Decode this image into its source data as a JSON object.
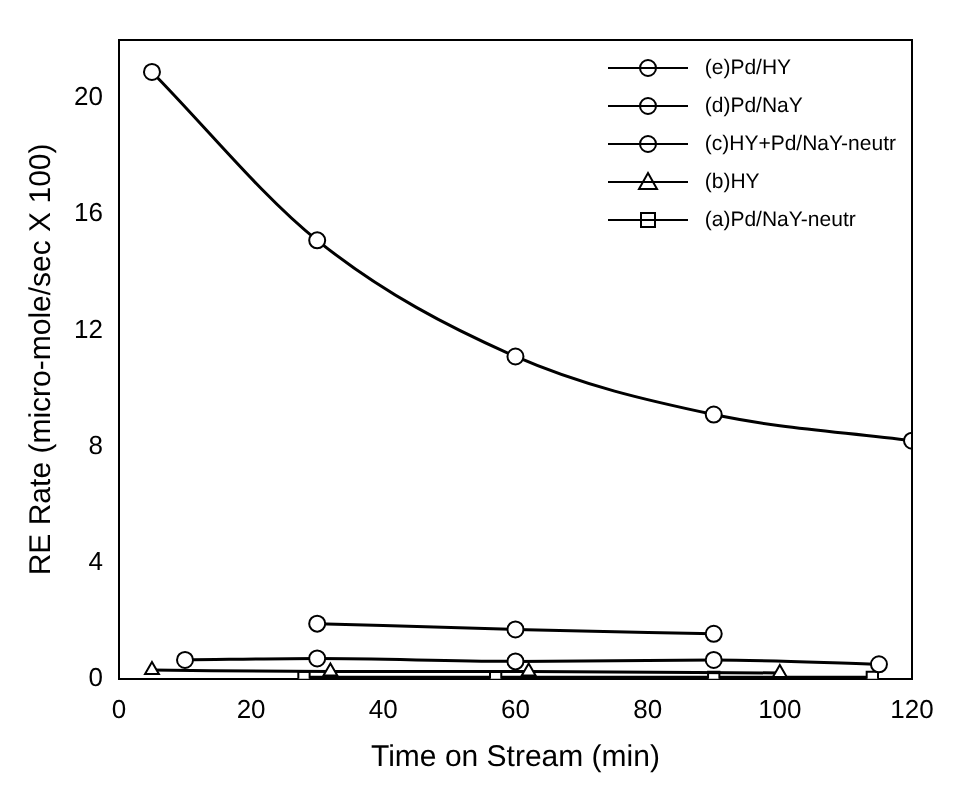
{
  "chart_data": {
    "type": "line",
    "xlabel": "Time on Stream (min)",
    "ylabel": "RE Rate (micro-mole/sec X 100)",
    "xlim": [
      0,
      120
    ],
    "xticks": [
      0,
      20,
      40,
      60,
      80,
      100,
      120
    ],
    "ylim": [
      0,
      22
    ],
    "yticks": [
      0,
      4,
      8,
      12,
      16,
      20
    ],
    "grid": false,
    "legend": "top right",
    "line_style": "solid",
    "series": [
      {
        "name": "(e)Pd/HY",
        "color": "#000000",
        "marker": "circle",
        "x": [
          5,
          30,
          60,
          90,
          120
        ],
        "values": [
          20.9,
          15.1,
          11.1,
          9.1,
          8.2
        ]
      },
      {
        "name": "(d)Pd/NaY",
        "color": "#000000",
        "marker": "circle",
        "x": [
          30,
          60,
          90
        ],
        "values": [
          1.9,
          1.7,
          1.55
        ]
      },
      {
        "name": "(c)HY+Pd/NaY-neutr",
        "color": "#000000",
        "marker": "circle",
        "x": [
          10,
          30,
          60,
          90,
          115
        ],
        "values": [
          0.65,
          0.7,
          0.6,
          0.65,
          0.5
        ]
      },
      {
        "name": "(b)HY",
        "color": "#000000",
        "marker": "triangle",
        "x": [
          5,
          32,
          62,
          100
        ],
        "values": [
          0.3,
          0.25,
          0.25,
          0.2
        ]
      },
      {
        "name": "(a)Pd/NaY-neutr",
        "color": "#000000",
        "marker": "square",
        "x": [
          28,
          57,
          90,
          114
        ],
        "values": [
          0.05,
          0.05,
          0.05,
          0.05
        ]
      }
    ]
  }
}
